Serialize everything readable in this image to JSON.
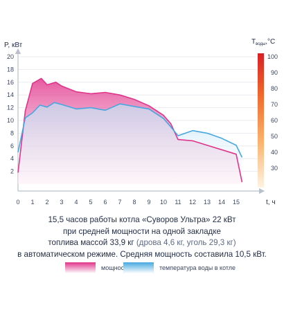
{
  "chart_data": {
    "type": "area",
    "y_left": {
      "label": "P, кВт",
      "ticks": [
        "2",
        "4",
        "6",
        "8",
        "10",
        "12",
        "14",
        "16",
        "18",
        "20"
      ],
      "range": [
        0,
        20
      ]
    },
    "y_right": {
      "label": "T",
      "label_sub": "воды",
      "label_unit": ",°C",
      "ticks": [
        "30",
        "40",
        "50",
        "60",
        "70",
        "80",
        "90",
        "100"
      ],
      "range": [
        20,
        100
      ]
    },
    "x_axis": {
      "label": "t, ч",
      "ticks": [
        "0",
        "1",
        "2",
        "3",
        "4",
        "5",
        "6",
        "7",
        "8",
        "9",
        "10",
        "11",
        "12",
        "13",
        "14",
        "15"
      ],
      "range": [
        0,
        16
      ]
    },
    "series": [
      {
        "name": "мощность",
        "color": "#e0338a",
        "points": [
          [
            0,
            1.8
          ],
          [
            0.5,
            11.5
          ],
          [
            1,
            15.8
          ],
          [
            1.6,
            16.6
          ],
          [
            2,
            15.6
          ],
          [
            2.6,
            16.0
          ],
          [
            3,
            15.4
          ],
          [
            4,
            14.5
          ],
          [
            5,
            14.2
          ],
          [
            6,
            14.4
          ],
          [
            7,
            14.0
          ],
          [
            8,
            13.3
          ],
          [
            9,
            12.3
          ],
          [
            10,
            10.8
          ],
          [
            10.5,
            9.5
          ],
          [
            11,
            7.0
          ],
          [
            12,
            6.8
          ],
          [
            13,
            6.1
          ],
          [
            14,
            5.4
          ],
          [
            15,
            4.7
          ],
          [
            15.4,
            0.3
          ]
        ]
      },
      {
        "name": "температура воды в котле",
        "color": "#46a8e0",
        "points": [
          [
            0,
            5
          ],
          [
            0.5,
            10.4
          ],
          [
            1,
            11.2
          ],
          [
            1.5,
            12.4
          ],
          [
            2,
            12.1
          ],
          [
            2.5,
            12.8
          ],
          [
            3,
            12.5
          ],
          [
            4,
            11.8
          ],
          [
            5,
            12.0
          ],
          [
            6,
            11.6
          ],
          [
            7,
            12.6
          ],
          [
            8,
            12.2
          ],
          [
            9,
            11.8
          ],
          [
            10,
            10.3
          ],
          [
            10.5,
            9.0
          ],
          [
            11,
            7.6
          ],
          [
            12,
            8.4
          ],
          [
            13,
            8.0
          ],
          [
            14,
            7.2
          ],
          [
            15,
            6.1
          ],
          [
            15.4,
            4.2
          ]
        ]
      }
    ]
  },
  "caption": {
    "line1": "15,5 часов работы котла «Суворов Ультра» 22 кВт",
    "line2": "при средней мощности на одной закладке",
    "line3a": "топлива массой 33,9 кг ",
    "line3b": "(дрова 4,6 кг, уголь 29,3 кг)",
    "line4": "в автоматическом режиме. Средняя мощность составила 10,5 кВт."
  },
  "legend": {
    "power_label": "мощность",
    "temp_label": "температура воды в котле"
  }
}
